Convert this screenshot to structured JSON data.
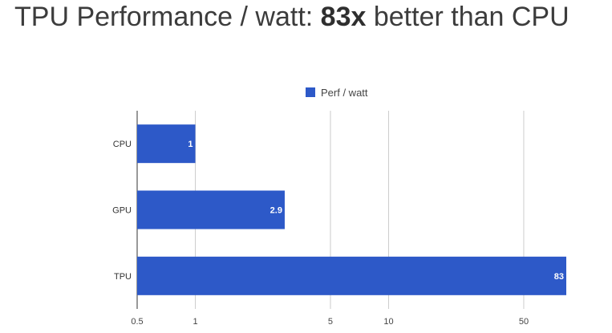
{
  "title": {
    "prefix": "TPU Performance / watt: ",
    "highlight": "83x",
    "suffix": " better than CPU"
  },
  "chart_data": {
    "type": "bar",
    "orientation": "horizontal",
    "x_scale": "log",
    "categories": [
      "CPU",
      "GPU",
      "TPU"
    ],
    "series": [
      {
        "name": "Perf / watt",
        "values": [
          1,
          2.9,
          83
        ],
        "color": "#2d59c8"
      }
    ],
    "data_labels": [
      "1",
      "2.9",
      "83"
    ],
    "xlim": [
      0.5,
      83
    ],
    "xticks": [
      0.5,
      1,
      5,
      10,
      50
    ],
    "xtick_labels": [
      "0.5",
      "1",
      "5",
      "10",
      "50"
    ],
    "grid": true,
    "legend": "top-center"
  }
}
